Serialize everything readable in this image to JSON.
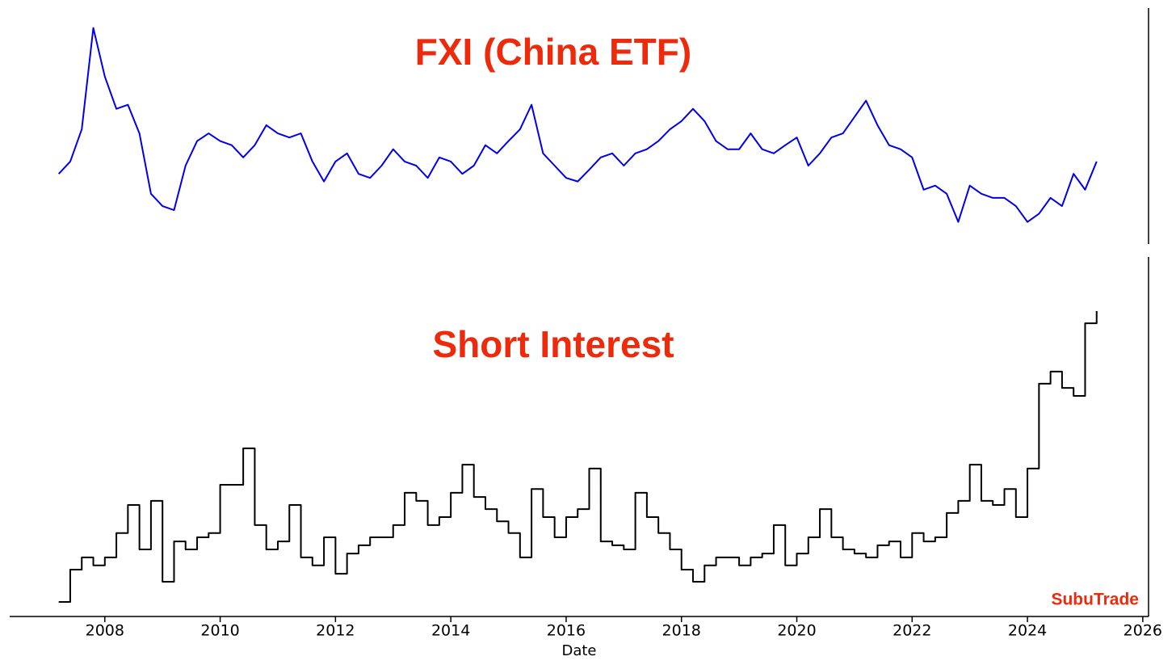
{
  "chart_data": [
    {
      "type": "line",
      "title": "FXI (China ETF)",
      "x": [
        2007.2,
        2007.4,
        2007.6,
        2007.8,
        2008.0,
        2008.2,
        2008.4,
        2008.6,
        2008.8,
        2009.0,
        2009.2,
        2009.4,
        2009.6,
        2009.8,
        2010.0,
        2010.2,
        2010.4,
        2010.6,
        2010.8,
        2011.0,
        2011.2,
        2011.4,
        2011.6,
        2011.8,
        2012.0,
        2012.2,
        2012.4,
        2012.6,
        2012.8,
        2013.0,
        2013.2,
        2013.4,
        2013.6,
        2013.8,
        2014.0,
        2014.2,
        2014.4,
        2014.6,
        2014.8,
        2015.0,
        2015.2,
        2015.4,
        2015.6,
        2015.8,
        2016.0,
        2016.2,
        2016.4,
        2016.6,
        2016.8,
        2017.0,
        2017.2,
        2017.4,
        2017.6,
        2017.8,
        2018.0,
        2018.2,
        2018.4,
        2018.6,
        2018.8,
        2019.0,
        2019.2,
        2019.4,
        2019.6,
        2019.8,
        2020.0,
        2020.2,
        2020.4,
        2020.6,
        2020.8,
        2021.0,
        2021.2,
        2021.4,
        2021.6,
        2021.8,
        2022.0,
        2022.2,
        2022.4,
        2022.6,
        2022.8,
        2023.0,
        2023.2,
        2023.4,
        2023.6,
        2023.8,
        2024.0,
        2024.2,
        2024.4,
        2024.6,
        2024.8,
        2025.0,
        2025.2
      ],
      "series": [
        {
          "color": "#0000ee",
          "values": [
            28.4,
            30.8,
            37.1,
            56.9,
            47.4,
            41.1,
            41.9,
            36.3,
            24.5,
            22.1,
            21.3,
            30.0,
            34.8,
            36.3,
            34.8,
            34.0,
            31.6,
            34.0,
            37.9,
            36.3,
            35.5,
            36.3,
            30.8,
            26.9,
            30.8,
            32.4,
            28.4,
            27.6,
            30.0,
            33.2,
            30.8,
            30.0,
            27.6,
            31.6,
            30.8,
            28.4,
            30.0,
            34.0,
            32.4,
            34.8,
            37.1,
            41.9,
            32.4,
            30.0,
            27.6,
            26.9,
            29.2,
            31.6,
            32.4,
            30.0,
            32.4,
            33.2,
            34.8,
            37.1,
            38.7,
            41.1,
            38.7,
            34.8,
            33.2,
            33.2,
            36.3,
            33.2,
            32.4,
            34.0,
            35.5,
            30.0,
            32.4,
            35.5,
            36.3,
            39.5,
            42.7,
            37.9,
            34.0,
            33.2,
            31.6,
            25.3,
            26.1,
            24.5,
            19.0,
            26.1,
            24.5,
            23.7,
            23.7,
            22.1,
            19.0,
            20.6,
            23.7,
            22.1,
            28.4,
            25.3,
            30.8
          ]
        }
      ],
      "xlim": [
        2006.35,
        2026.1
      ],
      "ylim": [
        15,
        60
      ]
    },
    {
      "type": "line",
      "title": "Short Interest",
      "step": "post",
      "xlabel": "Date",
      "annotation": "SubuTrade",
      "x": [
        2007.2,
        2007.4,
        2007.6,
        2007.8,
        2008.0,
        2008.2,
        2008.4,
        2008.6,
        2008.8,
        2009.0,
        2009.2,
        2009.4,
        2009.6,
        2009.8,
        2010.0,
        2010.2,
        2010.4,
        2010.6,
        2010.8,
        2011.0,
        2011.2,
        2011.4,
        2011.6,
        2011.8,
        2012.0,
        2012.2,
        2012.4,
        2012.6,
        2012.8,
        2013.0,
        2013.2,
        2013.4,
        2013.6,
        2013.8,
        2014.0,
        2014.2,
        2014.4,
        2014.6,
        2014.8,
        2015.0,
        2015.2,
        2015.4,
        2015.6,
        2015.8,
        2016.0,
        2016.2,
        2016.4,
        2016.6,
        2016.8,
        2017.0,
        2017.2,
        2017.4,
        2017.6,
        2017.8,
        2018.0,
        2018.2,
        2018.4,
        2018.6,
        2018.8,
        2019.0,
        2019.2,
        2019.4,
        2019.6,
        2019.8,
        2020.0,
        2020.2,
        2020.4,
        2020.6,
        2020.8,
        2021.0,
        2021.2,
        2021.4,
        2021.6,
        2021.8,
        2022.0,
        2022.2,
        2022.4,
        2022.6,
        2022.8,
        2023.0,
        2023.2,
        2023.4,
        2023.6,
        2023.8,
        2024.0,
        2024.2,
        2024.4,
        2024.6,
        2024.8,
        2025.0,
        2025.2
      ],
      "series": [
        {
          "color": "#000000",
          "values": [
            3.5,
            12.8,
            16.3,
            14.0,
            16.3,
            23.3,
            31.4,
            18.6,
            32.6,
            9.3,
            20.9,
            18.6,
            22.1,
            23.3,
            37.2,
            37.2,
            47.7,
            25.6,
            18.6,
            20.9,
            31.4,
            16.3,
            14.0,
            22.1,
            11.6,
            17.4,
            19.8,
            22.1,
            22.1,
            25.6,
            34.9,
            32.6,
            25.6,
            27.9,
            34.9,
            43.0,
            33.7,
            30.2,
            26.7,
            23.3,
            16.3,
            36.0,
            27.9,
            22.1,
            27.9,
            30.2,
            41.9,
            20.9,
            19.8,
            18.6,
            34.9,
            27.9,
            23.3,
            18.6,
            12.8,
            9.3,
            14.0,
            16.3,
            16.3,
            14.0,
            16.3,
            17.4,
            25.6,
            14.0,
            17.4,
            22.1,
            30.2,
            22.1,
            18.6,
            17.4,
            16.3,
            19.8,
            20.9,
            16.3,
            23.3,
            20.9,
            22.1,
            29.1,
            32.6,
            43.0,
            32.6,
            31.4,
            36.0,
            27.9,
            41.9,
            66.3,
            69.8,
            65.1,
            62.8,
            83.7,
            87.2
          ]
        }
      ],
      "xlim": [
        2006.35,
        2026.1
      ],
      "ylim": [
        0,
        100
      ],
      "xticks": [
        2008,
        2010,
        2012,
        2014,
        2016,
        2018,
        2020,
        2022,
        2024,
        2026
      ]
    }
  ]
}
